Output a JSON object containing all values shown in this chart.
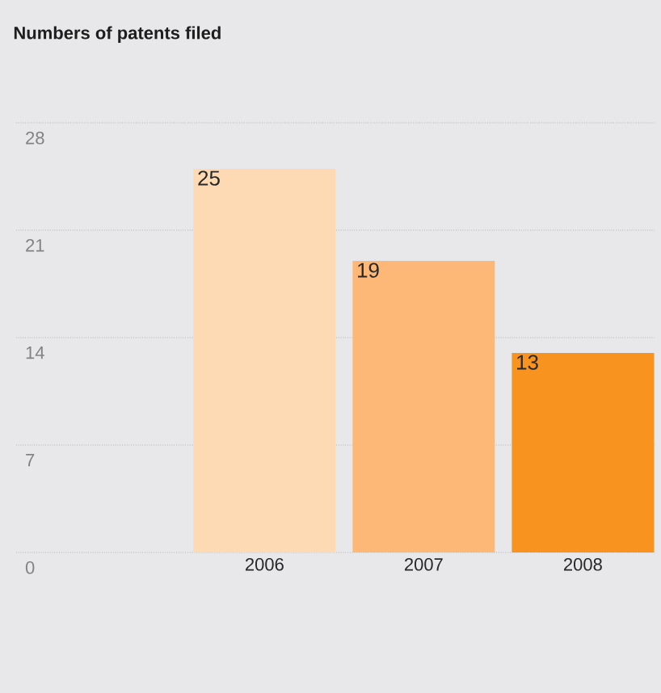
{
  "chart_data": {
    "type": "bar",
    "title": "Numbers of patents filed",
    "categories": [
      "2006",
      "2007",
      "2008"
    ],
    "values": [
      25,
      19,
      13
    ],
    "colors": [
      "#fddab3",
      "#fdb877",
      "#f7931e"
    ],
    "data_labels": true,
    "ylim": [
      0,
      28
    ],
    "yticks": [
      0,
      7,
      14,
      21,
      28
    ],
    "grid": "y"
  }
}
